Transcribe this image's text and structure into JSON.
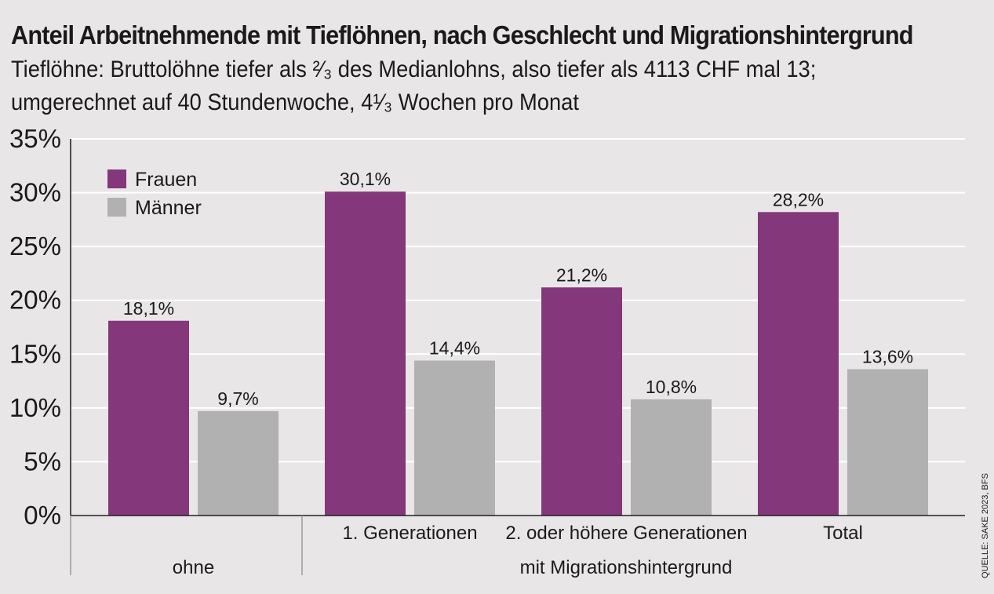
{
  "header": {
    "title": "Anteil Arbeitnehmende mit Tieflöhnen, nach Geschlecht und Migrationshintergrund",
    "subtitle_line1": "Tieflöhne: Bruttolöhne tiefer als ²⁄₃ des Medianlohns, also tiefer als 4113 CHF mal 13;",
    "subtitle_line2": "umgerechnet auf 40 Stundenwoche, 4¹⁄₃ Wochen pro Monat"
  },
  "source": "QUELLE: SAKE 2023, BFS",
  "colors": {
    "frauen": "#84377a",
    "maenner": "#b1b1b1",
    "background": "#e9e6e7",
    "text": "#1a1a1a"
  },
  "chart_data": {
    "type": "bar",
    "categories": [
      "ohne",
      "1. Generationen",
      "2. oder höhere Generationen",
      "Total"
    ],
    "category_group": {
      "label": "mit Migrationshintergrund",
      "members": [
        "1. Generationen",
        "2. oder höhere Generationen",
        "Total"
      ]
    },
    "series": [
      {
        "name": "Frauen",
        "values": [
          18.1,
          30.1,
          21.2,
          28.2
        ],
        "labels": [
          "18,1%",
          "30,1%",
          "21,2%",
          "28,2%"
        ]
      },
      {
        "name": "Männer",
        "values": [
          9.7,
          14.4,
          10.8,
          13.6
        ],
        "labels": [
          "9,7%",
          "14,4%",
          "10,8%",
          "13,6%"
        ]
      }
    ],
    "ylim": [
      0,
      35
    ],
    "yticks": [
      0,
      5,
      10,
      15,
      20,
      25,
      30,
      35
    ],
    "ytick_labels": [
      "0%",
      "5%",
      "10%",
      "15%",
      "20%",
      "25%",
      "30%",
      "35%"
    ],
    "grid": true,
    "legend_position": "top-left"
  }
}
